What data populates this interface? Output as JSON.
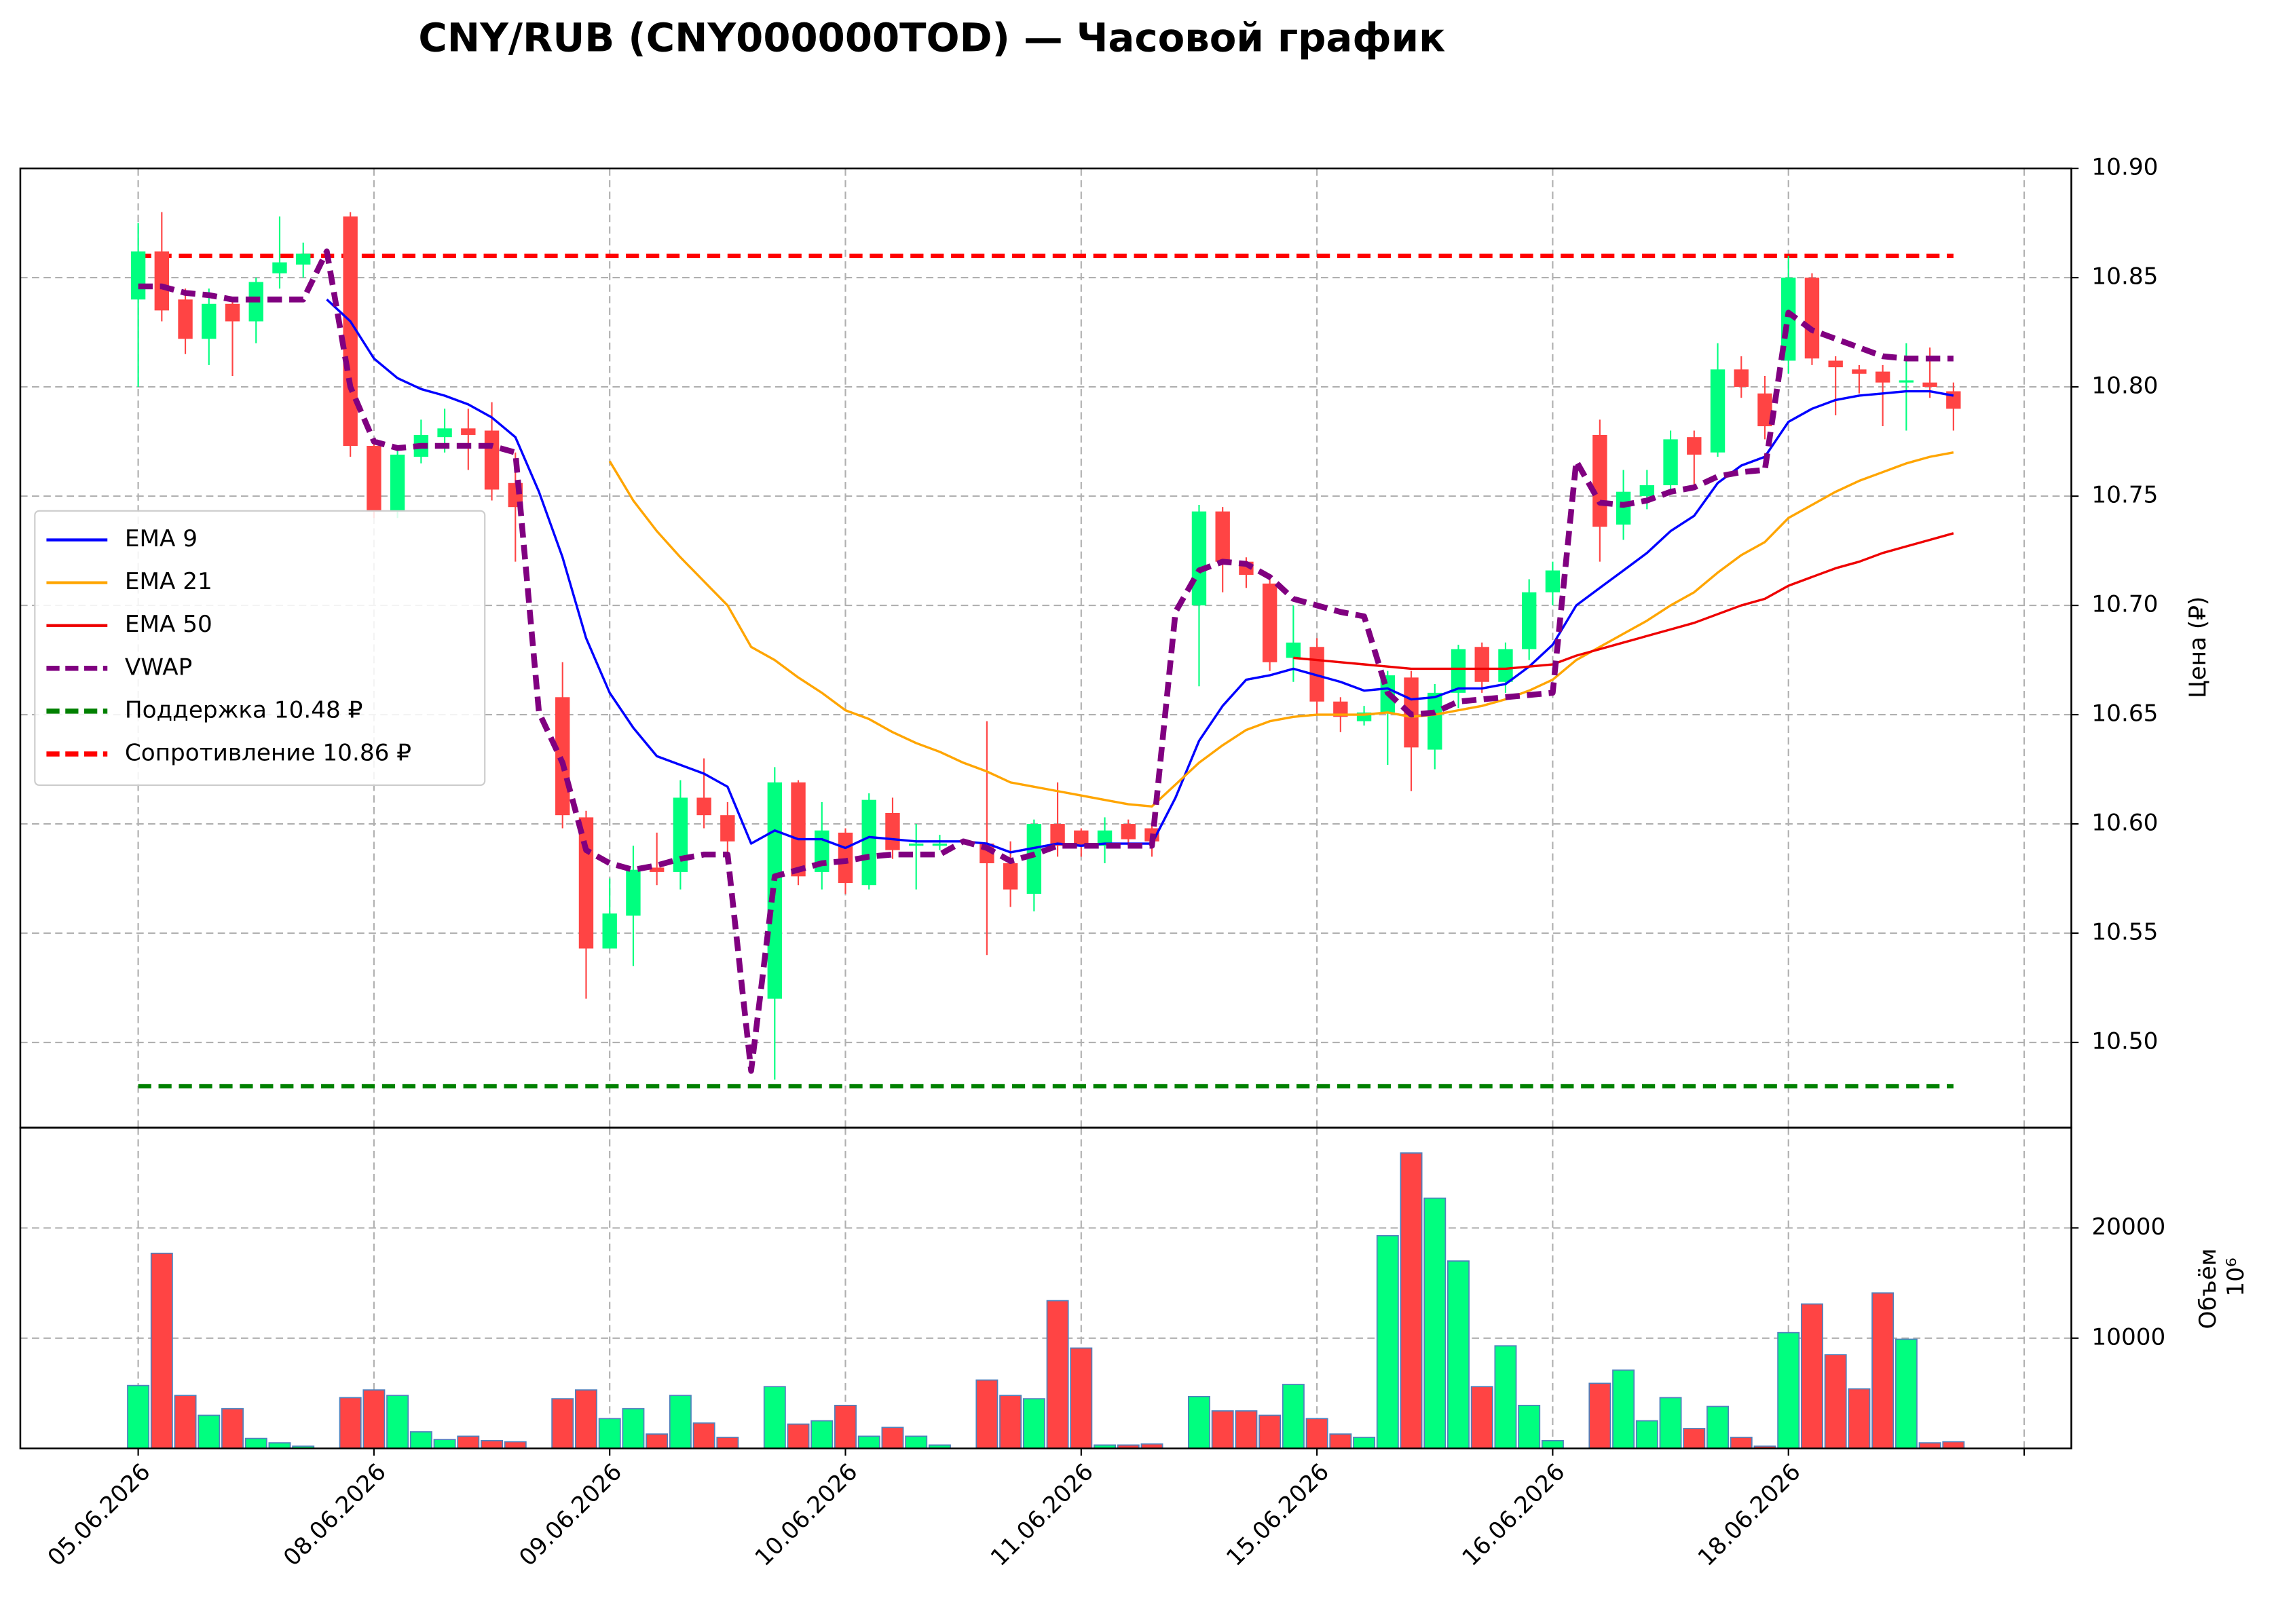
{
  "chart_data": {
    "type": "candlestick",
    "title": "CNY/RUB (CNY000000TOD) — Часовой график",
    "y_label": "Цена (₽)",
    "up_color": "#00ff7f",
    "down_color": "#ff4444",
    "grid": true,
    "legend": "center left",
    "x": [
      0,
      1,
      2,
      3,
      4,
      5,
      6,
      7,
      8,
      9,
      10,
      11,
      12,
      13,
      14,
      15,
      16,
      17,
      18,
      19,
      20,
      21,
      22,
      23,
      24,
      25,
      26,
      27,
      28,
      29,
      30,
      31,
      32,
      33,
      34,
      35,
      36,
      37,
      38,
      39,
      40,
      41,
      42,
      43,
      44,
      45,
      46,
      47,
      48,
      49,
      50,
      51,
      52,
      53,
      54,
      55,
      56,
      57,
      58,
      59,
      60,
      61,
      62,
      63,
      64,
      65,
      66,
      67,
      68,
      69,
      70,
      71,
      72,
      73,
      74,
      75,
      76,
      77
    ],
    "xlim": [
      -5,
      82
    ],
    "xticks": [
      {
        "value": 0,
        "label": "05.06.2026"
      },
      {
        "value": 10,
        "label": "08.06.2026"
      },
      {
        "value": 20,
        "label": "09.06.2026"
      },
      {
        "value": 30,
        "label": "10.06.2026"
      },
      {
        "value": 40,
        "label": "11.06.2026"
      },
      {
        "value": 50,
        "label": "15.06.2026"
      },
      {
        "value": 60,
        "label": "16.06.2026"
      },
      {
        "value": 70,
        "label": "18.06.2026"
      },
      {
        "value": 80,
        "label": null
      }
    ],
    "ylim": [
      10.461,
      10.9
    ],
    "yticks": [
      {
        "value": 10.5,
        "label": "10.50"
      },
      10.55,
      {
        "value": 10.6,
        "label": "10.60"
      },
      10.65,
      {
        "value": 10.7,
        "label": "10.70"
      },
      10.75,
      {
        "value": 10.8,
        "label": "10.80"
      },
      10.85,
      {
        "value": 10.9,
        "label": "10.90"
      }
    ],
    "open": [
      10.84,
      10.862,
      10.84,
      10.822,
      10.838,
      10.83,
      10.852,
      10.856,
      null,
      10.878,
      10.773,
      10.743,
      10.768,
      10.777,
      10.781,
      10.78,
      10.756,
      null,
      10.658,
      10.603,
      10.543,
      10.558,
      10.58,
      10.578,
      10.612,
      10.604,
      null,
      10.52,
      10.619,
      10.578,
      10.596,
      10.572,
      10.605,
      10.59,
      10.59,
      null,
      10.591,
      10.582,
      10.568,
      10.6,
      10.597,
      10.59,
      10.6,
      10.598,
      null,
      10.7,
      10.743,
      10.72,
      10.71,
      10.676,
      10.681,
      10.656,
      10.647,
      10.651,
      10.667,
      10.634,
      10.66,
      10.681,
      10.665,
      10.68,
      10.706,
      null,
      10.778,
      10.737,
      10.75,
      10.755,
      10.777,
      10.77,
      10.808,
      10.797,
      10.812,
      10.85,
      10.812,
      10.808,
      10.807,
      10.802,
      10.802,
      10.798
    ],
    "high": [
      10.875,
      10.88,
      10.845,
      10.845,
      10.84,
      10.85,
      10.878,
      10.866,
      null,
      10.88,
      10.775,
      10.772,
      10.785,
      10.79,
      10.79,
      10.793,
      10.77,
      null,
      10.674,
      10.606,
      10.575,
      10.59,
      10.596,
      10.62,
      10.63,
      10.61,
      null,
      10.626,
      10.62,
      10.61,
      10.598,
      10.614,
      10.612,
      10.6,
      10.595,
      null,
      10.647,
      10.592,
      10.602,
      10.619,
      10.598,
      10.603,
      10.602,
      10.6,
      null,
      10.746,
      10.745,
      10.722,
      10.714,
      10.7,
      10.685,
      10.658,
      10.654,
      10.67,
      10.67,
      10.664,
      10.682,
      10.683,
      10.683,
      10.712,
      10.72,
      null,
      10.785,
      10.762,
      10.762,
      10.78,
      10.78,
      10.82,
      10.814,
      10.805,
      10.86,
      10.852,
      10.814,
      10.81,
      10.81,
      10.82,
      10.818,
      10.802
    ],
    "low": [
      10.8,
      10.83,
      10.815,
      10.81,
      10.805,
      10.82,
      10.845,
      10.85,
      null,
      10.768,
      10.74,
      10.74,
      10.765,
      10.77,
      10.762,
      10.748,
      10.72,
      null,
      10.598,
      10.52,
      10.543,
      10.535,
      10.572,
      10.57,
      10.598,
      10.585,
      null,
      10.483,
      10.572,
      10.57,
      10.568,
      10.57,
      10.584,
      10.57,
      10.588,
      null,
      10.54,
      10.562,
      10.56,
      10.585,
      10.585,
      10.582,
      10.59,
      10.585,
      null,
      10.663,
      10.706,
      10.708,
      10.67,
      10.665,
      10.65,
      10.642,
      10.645,
      10.627,
      10.615,
      10.625,
      10.653,
      10.66,
      10.66,
      10.675,
      10.7,
      null,
      10.72,
      10.73,
      10.744,
      10.752,
      10.755,
      10.768,
      10.795,
      10.776,
      10.806,
      10.81,
      10.787,
      10.797,
      10.782,
      10.78,
      10.795,
      10.78
    ],
    "close": [
      10.862,
      10.835,
      10.822,
      10.838,
      10.83,
      10.848,
      10.857,
      10.861,
      null,
      10.773,
      10.743,
      10.769,
      10.778,
      10.781,
      10.778,
      10.753,
      10.745,
      null,
      10.604,
      10.543,
      10.559,
      10.579,
      10.578,
      10.612,
      10.604,
      10.592,
      null,
      10.619,
      10.576,
      10.597,
      10.573,
      10.611,
      10.588,
      10.591,
      10.591,
      null,
      10.582,
      10.57,
      10.6,
      10.59,
      10.59,
      10.597,
      10.593,
      10.592,
      null,
      10.743,
      10.72,
      10.714,
      10.674,
      10.683,
      10.656,
      10.649,
      10.651,
      10.668,
      10.635,
      10.66,
      10.68,
      10.665,
      10.68,
      10.706,
      10.716,
      null,
      10.736,
      10.752,
      10.755,
      10.776,
      10.769,
      10.808,
      10.8,
      10.782,
      10.85,
      10.813,
      10.809,
      10.806,
      10.802,
      10.803,
      10.8,
      10.79
    ],
    "series": [
      {
        "name": "EMA 9",
        "color": "#0000ff",
        "dashed": false,
        "values": [
          null,
          null,
          null,
          null,
          null,
          null,
          null,
          null,
          10.84,
          10.83,
          10.813,
          10.804,
          10.799,
          10.796,
          10.792,
          10.786,
          10.777,
          10.752,
          10.722,
          10.685,
          10.66,
          10.644,
          10.631,
          10.627,
          10.623,
          10.617,
          10.591,
          10.597,
          10.593,
          10.593,
          10.589,
          10.594,
          10.593,
          10.592,
          10.592,
          10.592,
          10.591,
          10.587,
          10.589,
          10.591,
          10.59,
          10.591,
          10.591,
          10.591,
          10.612,
          10.638,
          10.654,
          10.666,
          10.668,
          10.671,
          10.668,
          10.665,
          10.661,
          10.662,
          10.657,
          10.658,
          10.662,
          10.662,
          10.664,
          10.672,
          10.682,
          10.7,
          10.708,
          10.716,
          10.724,
          10.734,
          10.741,
          10.756,
          10.764,
          10.768,
          10.784,
          10.79,
          10.794,
          10.796,
          10.797,
          10.798,
          10.798,
          10.796
        ]
      },
      {
        "name": "EMA 21",
        "color": "#ffa500",
        "dashed": false,
        "values": [
          null,
          null,
          null,
          null,
          null,
          null,
          null,
          null,
          null,
          null,
          null,
          null,
          null,
          null,
          null,
          null,
          null,
          null,
          null,
          null,
          10.766,
          10.748,
          10.734,
          10.722,
          10.711,
          10.7,
          10.681,
          10.675,
          10.667,
          10.66,
          10.652,
          10.648,
          10.642,
          10.637,
          10.633,
          10.628,
          10.624,
          10.619,
          10.617,
          10.615,
          10.613,
          10.611,
          10.609,
          10.608,
          10.618,
          10.628,
          10.636,
          10.643,
          10.647,
          10.649,
          10.65,
          10.65,
          10.65,
          10.651,
          10.649,
          10.65,
          10.652,
          10.654,
          10.657,
          10.661,
          10.666,
          10.675,
          10.681,
          10.687,
          10.693,
          10.7,
          10.706,
          10.715,
          10.723,
          10.729,
          10.74,
          10.746,
          10.752,
          10.757,
          10.761,
          10.765,
          10.768,
          10.77
        ]
      },
      {
        "name": "EMA 50",
        "color": "#ee0000",
        "dashed": false,
        "values": [
          null,
          null,
          null,
          null,
          null,
          null,
          null,
          null,
          null,
          null,
          null,
          null,
          null,
          null,
          null,
          null,
          null,
          null,
          null,
          null,
          null,
          null,
          null,
          null,
          null,
          null,
          null,
          null,
          null,
          null,
          null,
          null,
          null,
          null,
          null,
          null,
          null,
          null,
          null,
          null,
          null,
          null,
          null,
          null,
          null,
          null,
          null,
          null,
          null,
          10.676,
          10.675,
          10.674,
          10.673,
          10.672,
          10.671,
          10.671,
          10.671,
          10.671,
          10.671,
          10.672,
          10.673,
          10.677,
          10.68,
          10.683,
          10.686,
          10.689,
          10.692,
          10.696,
          10.7,
          10.703,
          10.709,
          10.713,
          10.717,
          10.72,
          10.724,
          10.727,
          10.73,
          10.733
        ]
      },
      {
        "name": "VWAP",
        "color": "#800080",
        "dashed": true,
        "values": [
          10.846,
          10.846,
          10.843,
          10.842,
          10.84,
          10.84,
          10.84,
          10.84,
          10.862,
          10.8,
          10.775,
          10.772,
          10.773,
          10.773,
          10.773,
          10.773,
          10.77,
          10.651,
          10.628,
          10.588,
          10.582,
          10.579,
          10.581,
          10.584,
          10.586,
          10.586,
          10.487,
          10.576,
          10.579,
          10.582,
          10.583,
          10.585,
          10.586,
          10.586,
          10.586,
          10.592,
          10.589,
          10.583,
          10.586,
          10.59,
          10.59,
          10.59,
          10.59,
          10.59,
          10.697,
          10.716,
          10.72,
          10.719,
          10.713,
          10.703,
          10.7,
          10.697,
          10.695,
          10.66,
          10.65,
          10.651,
          10.656,
          10.657,
          10.658,
          10.659,
          10.66,
          10.766,
          10.747,
          10.746,
          10.748,
          10.752,
          10.754,
          10.759,
          10.761,
          10.762,
          10.834,
          10.826,
          10.822,
          10.818,
          10.814,
          10.813,
          10.813,
          10.813
        ]
      }
    ],
    "hlines": [
      {
        "name": "Поддержка 10.48 ₽",
        "color": "#008000",
        "value": 10.48
      },
      {
        "name": "Сопротивление 10.86 ₽",
        "color": "#ff0000",
        "value": 10.86
      }
    ],
    "volume": {
      "label": "Объём",
      "scale_label": "10⁶",
      "edge_color": "#4f81bd",
      "ylim": [
        0,
        29100
      ],
      "yticks": [
        10000,
        20000
      ],
      "values": [
        5700,
        17700,
        4800,
        3000,
        3600,
        900,
        500,
        200,
        null,
        4600,
        5300,
        4800,
        1500,
        800,
        1100,
        700,
        600,
        null,
        4500,
        5300,
        2700,
        3600,
        1300,
        4800,
        2300,
        1000,
        null,
        5600,
        2200,
        2500,
        3900,
        1100,
        1900,
        1100,
        300,
        null,
        6200,
        4800,
        4500,
        13400,
        9100,
        300,
        300,
        400,
        null,
        4700,
        3400,
        3400,
        3000,
        5800,
        2700,
        1300,
        1000,
        19300,
        26800,
        22700,
        17000,
        5600,
        9300,
        3900,
        700,
        null,
        5900,
        7100,
        2500,
        4600,
        1800,
        3800,
        1000,
        200,
        10500,
        13100,
        8500,
        5400,
        14100,
        9900,
        500,
        600
      ]
    }
  }
}
